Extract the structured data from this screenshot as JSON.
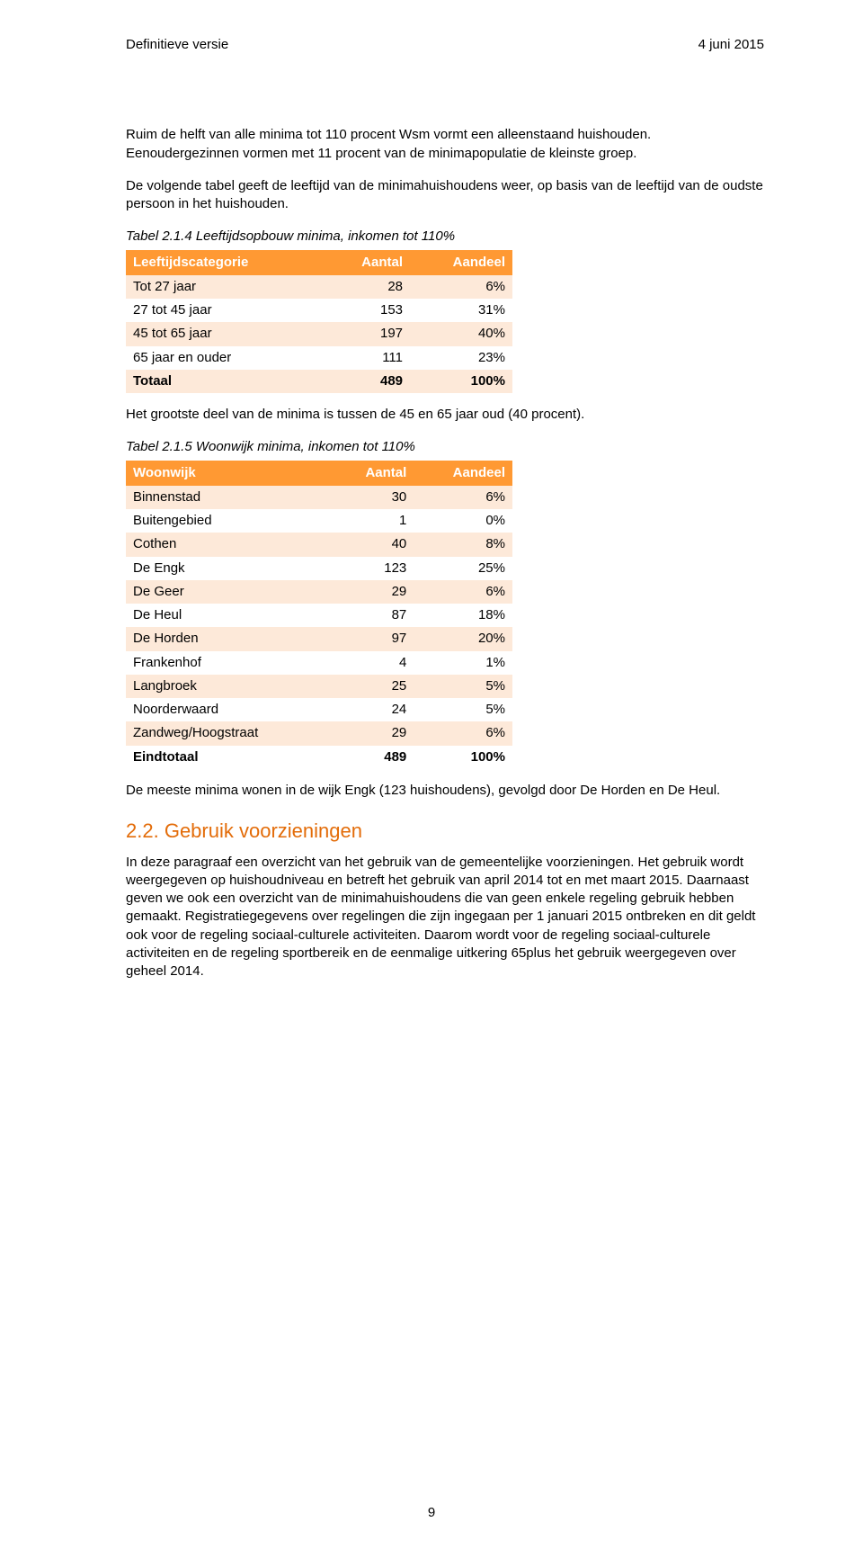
{
  "header": {
    "left": "Definitieve versie",
    "right": "4 juni 2015"
  },
  "para1": "Ruim de helft van alle minima tot 110 procent Wsm vormt een alleenstaand huishouden. Eenoudergezinnen vormen met 11 procent van de minimapopulatie de kleinste groep.",
  "para2": "De volgende tabel geeft de leeftijd van de minimahuishoudens weer, op basis van de leeftijd van de oudste persoon in het huishouden.",
  "table1": {
    "caption": "Tabel 2.1.4 Leeftijdsopbouw minima, inkomen tot 110%",
    "head": {
      "c1": "Leeftijdscategorie",
      "c2": "Aantal",
      "c3": "Aandeel"
    },
    "rows": [
      {
        "c1": "Tot 27 jaar",
        "c2": "28",
        "c3": "6%"
      },
      {
        "c1": "27 tot 45 jaar",
        "c2": "153",
        "c3": "31%"
      },
      {
        "c1": "45 tot 65 jaar",
        "c2": "197",
        "c3": "40%"
      },
      {
        "c1": "65 jaar en ouder",
        "c2": "111",
        "c3": "23%"
      },
      {
        "c1": "Totaal",
        "c2": "489",
        "c3": "100%"
      }
    ],
    "colors": {
      "header_bg": "#ff9933",
      "odd_bg": "#fde9d9",
      "even_bg": "#ffffff"
    }
  },
  "para3": "Het grootste deel van de minima is tussen de 45 en 65 jaar oud (40 procent).",
  "table2": {
    "caption": "Tabel 2.1.5 Woonwijk minima, inkomen tot 110%",
    "head": {
      "c1": "Woonwijk",
      "c2": "Aantal",
      "c3": "Aandeel"
    },
    "rows": [
      {
        "c1": "Binnenstad",
        "c2": "30",
        "c3": "6%"
      },
      {
        "c1": "Buitengebied",
        "c2": "1",
        "c3": "0%"
      },
      {
        "c1": "Cothen",
        "c2": "40",
        "c3": "8%"
      },
      {
        "c1": "De Engk",
        "c2": "123",
        "c3": "25%"
      },
      {
        "c1": "De Geer",
        "c2": "29",
        "c3": "6%"
      },
      {
        "c1": "De Heul",
        "c2": "87",
        "c3": "18%"
      },
      {
        "c1": "De Horden",
        "c2": "97",
        "c3": "20%"
      },
      {
        "c1": "Frankenhof",
        "c2": "4",
        "c3": "1%"
      },
      {
        "c1": "Langbroek",
        "c2": "25",
        "c3": "5%"
      },
      {
        "c1": "Noorderwaard",
        "c2": "24",
        "c3": "5%"
      },
      {
        "c1": "Zandweg/Hoogstraat",
        "c2": "29",
        "c3": "6%"
      },
      {
        "c1": "Eindtotaal",
        "c2": "489",
        "c3": "100%"
      }
    ],
    "colors": {
      "header_bg": "#ff9933",
      "odd_bg": "#fde9d9",
      "even_bg": "#ffffff"
    }
  },
  "para4": "De meeste minima wonen in de wijk Engk (123 huishoudens), gevolgd door De Horden en De Heul.",
  "section": {
    "number": "2.2.",
    "title": "Gebruik voorzieningen"
  },
  "para5": "In deze paragraaf een overzicht van het gebruik van de gemeentelijke voorzieningen. Het gebruik wordt weergegeven op huishoudniveau en betreft het gebruik van april 2014 tot en met maart 2015. Daarnaast geven we ook een overzicht van de minimahuishoudens die van geen enkele regeling gebruik hebben gemaakt. Registratiegegevens over regelingen die zijn ingegaan per 1 januari 2015 ontbreken en dit geldt ook voor de regeling sociaal-culturele activiteiten. Daarom wordt voor de regeling sociaal-culturele activiteiten en de regeling sportbereik en de eenmalige uitkering 65plus het gebruik weergegeven over geheel 2014.",
  "page_number": "9"
}
